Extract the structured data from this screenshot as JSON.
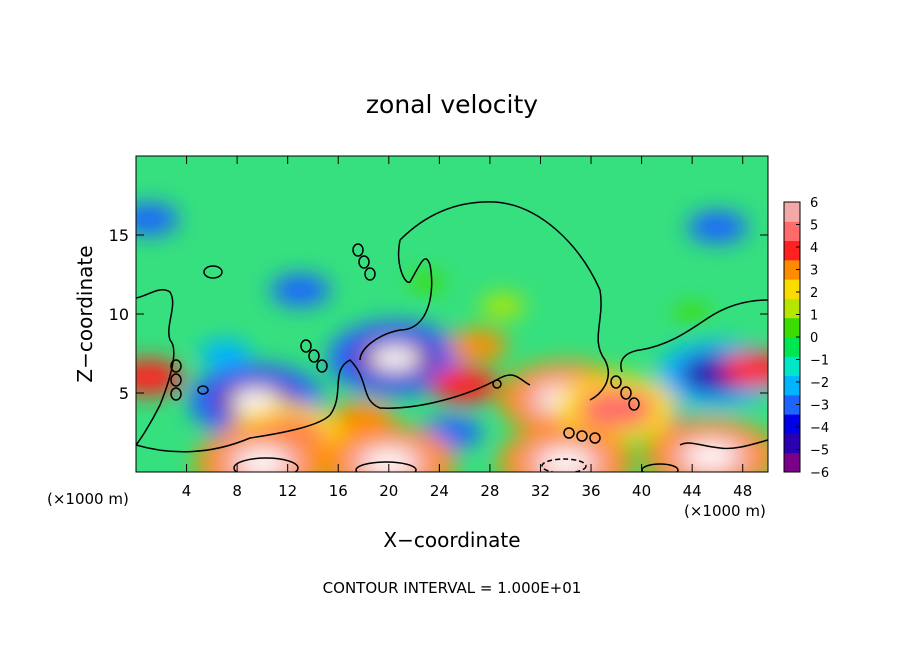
{
  "chart_data": {
    "type": "heatmap",
    "title": "zonal velocity",
    "xlabel": "X−coordinate",
    "ylabel": "Z−coordinate",
    "x_unit_left": "(×1000 m)",
    "x_unit_right": "(×1000 m)",
    "footer": "CONTOUR INTERVAL = 1.000E+01",
    "xlim": [
      0,
      50
    ],
    "ylim": [
      0,
      20
    ],
    "x_ticks": [
      4,
      8,
      12,
      16,
      20,
      24,
      28,
      32,
      36,
      40,
      44,
      48
    ],
    "x_tick_labels": [
      "4",
      "8",
      "12",
      "16",
      "20",
      "24",
      "28",
      "32",
      "36",
      "40",
      "44",
      "48"
    ],
    "y_ticks": [
      5,
      10,
      15
    ],
    "y_tick_labels": [
      "5",
      "10",
      "15"
    ],
    "colorbar": {
      "range": [
        -6,
        6
      ],
      "tick_labels": [
        "6",
        "5",
        "4",
        "3",
        "2",
        "1",
        "0",
        "−1",
        "−2",
        "−3",
        "−4",
        "−5",
        "−6"
      ],
      "colors": [
        "#7a008a",
        "#2a00b0",
        "#0000e6",
        "#1e64ff",
        "#00b4ff",
        "#00e6c8",
        "#00e650",
        "#3cdc00",
        "#b4e600",
        "#fadc00",
        "#ff8c00",
        "#ff2020",
        "#ff6a6a",
        "#f3a8a8"
      ]
    },
    "features": [
      {
        "x": 9.5,
        "z": 4.5,
        "value": -6
      },
      {
        "x": 20.5,
        "z": 7.2,
        "value": -6
      },
      {
        "x": 34,
        "z": 4.6,
        "value": 6
      },
      {
        "x": 46,
        "z": 6.2,
        "value": -5
      },
      {
        "x": 40.5,
        "z": 3.6,
        "value": -4
      },
      {
        "x": 13,
        "z": 11.5,
        "value": -3
      },
      {
        "x": 46,
        "z": 15.5,
        "value": -3
      },
      {
        "x": 1,
        "z": 16,
        "value": -3
      },
      {
        "x": 29,
        "z": 10.5,
        "value": 1
      },
      {
        "x": 27,
        "z": 8,
        "value": 3
      },
      {
        "x": 26,
        "z": 5.5,
        "value": 4
      },
      {
        "x": 38,
        "z": 4,
        "value": 5
      },
      {
        "x": 49,
        "z": 6.5,
        "value": 4
      },
      {
        "x": 1,
        "z": 6,
        "value": 4
      },
      {
        "x": 12,
        "z": 2.2,
        "value": 5
      },
      {
        "x": 25,
        "z": 2.5,
        "value": -3
      },
      {
        "x": 33,
        "z": 1.5,
        "value": -4
      },
      {
        "x": 7,
        "z": 7.5,
        "value": -2
      },
      {
        "x": 18,
        "z": 3.5,
        "value": 3
      },
      {
        "x": 10,
        "z": 0.6,
        "value": 6
      },
      {
        "x": 20,
        "z": 0.6,
        "value": 6
      },
      {
        "x": 34,
        "z": 0.6,
        "value": 6
      },
      {
        "x": 45.5,
        "z": 1,
        "value": 6
      },
      {
        "x": 23,
        "z": 12,
        "value": 0
      },
      {
        "x": 44,
        "z": 10,
        "value": 0
      }
    ]
  }
}
